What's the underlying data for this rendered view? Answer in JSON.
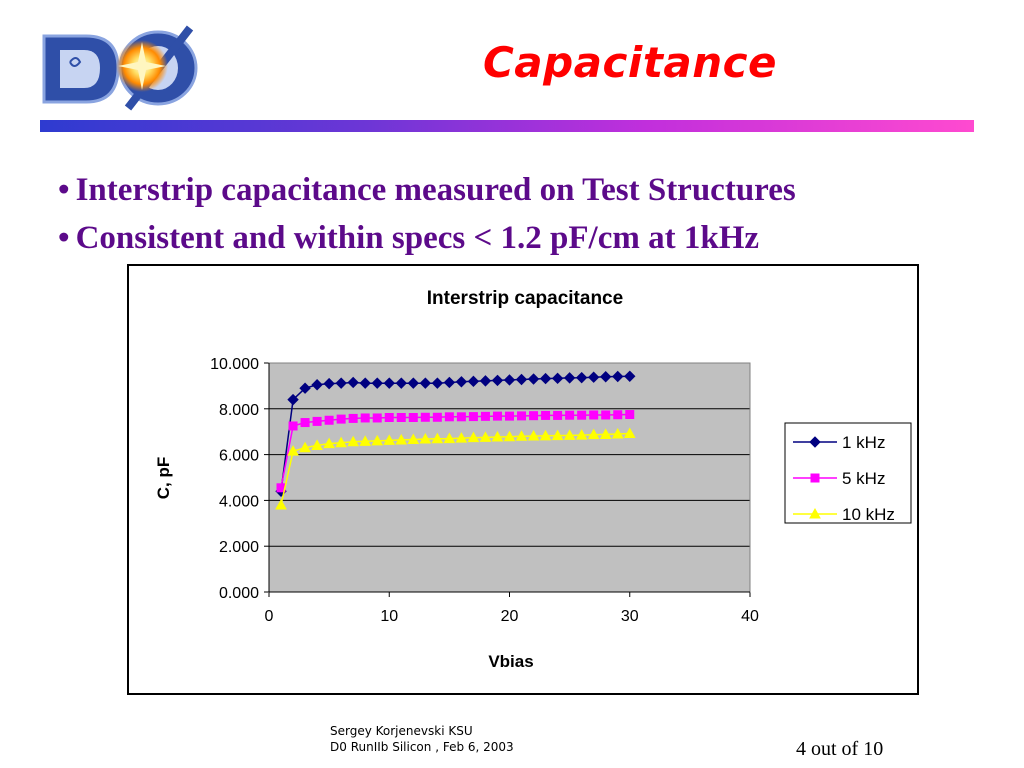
{
  "slide": {
    "title": "Capacitance",
    "bullets": [
      "Interstrip capacitance measured on Test Structures",
      "Consistent and within specs < 1.2 pF/cm at 1kHz"
    ],
    "footer_author_line1": "Sergey Korjenevski KSU",
    "footer_author_line2": "D0 RunIIb Silicon ,  Feb 6, 2003",
    "page": "4 out of 10"
  },
  "colors": {
    "title": "#ff0000",
    "bullets": "#5c0a8a",
    "plot_bg": "#c0c0c0",
    "series_1khz": "#000080",
    "series_5khz": "#ff00ff",
    "series_10khz": "#ffff00"
  },
  "chart_data": {
    "type": "line",
    "title": "Interstrip capacitance",
    "xlabel": "Vbias",
    "ylabel": "C, pF",
    "xlim": [
      0,
      40
    ],
    "ylim": [
      0,
      10
    ],
    "xticks": [
      "0",
      "10",
      "20",
      "30",
      "40"
    ],
    "yticks": [
      "0.000",
      "2.000",
      "4.000",
      "6.000",
      "8.000",
      "10.000"
    ],
    "grid": "horizontal",
    "legend_position": "right",
    "x": [
      1,
      2,
      3,
      4,
      5,
      6,
      7,
      8,
      9,
      10,
      11,
      12,
      13,
      14,
      15,
      16,
      17,
      18,
      19,
      20,
      21,
      22,
      23,
      24,
      25,
      26,
      27,
      28,
      29,
      30
    ],
    "series": [
      {
        "name": "1 kHz",
        "marker": "diamond",
        "color": "#000080",
        "values": [
          4.4,
          8.4,
          8.9,
          9.05,
          9.1,
          9.12,
          9.15,
          9.12,
          9.12,
          9.12,
          9.12,
          9.12,
          9.12,
          9.12,
          9.15,
          9.18,
          9.2,
          9.22,
          9.24,
          9.26,
          9.28,
          9.3,
          9.32,
          9.33,
          9.35,
          9.36,
          9.38,
          9.4,
          9.41,
          9.42
        ]
      },
      {
        "name": "5 kHz",
        "marker": "square",
        "color": "#ff00ff",
        "values": [
          4.55,
          7.25,
          7.4,
          7.45,
          7.5,
          7.55,
          7.58,
          7.6,
          7.6,
          7.62,
          7.62,
          7.62,
          7.63,
          7.63,
          7.65,
          7.65,
          7.66,
          7.67,
          7.68,
          7.68,
          7.69,
          7.7,
          7.71,
          7.71,
          7.72,
          7.72,
          7.73,
          7.73,
          7.74,
          7.75
        ]
      },
      {
        "name": "10 kHz",
        "marker": "triangle",
        "color": "#ffff00",
        "values": [
          3.8,
          6.15,
          6.3,
          6.4,
          6.48,
          6.52,
          6.56,
          6.58,
          6.6,
          6.62,
          6.64,
          6.66,
          6.68,
          6.69,
          6.7,
          6.72,
          6.74,
          6.75,
          6.77,
          6.78,
          6.8,
          6.81,
          6.82,
          6.83,
          6.84,
          6.85,
          6.87,
          6.88,
          6.9,
          6.92
        ]
      }
    ]
  }
}
